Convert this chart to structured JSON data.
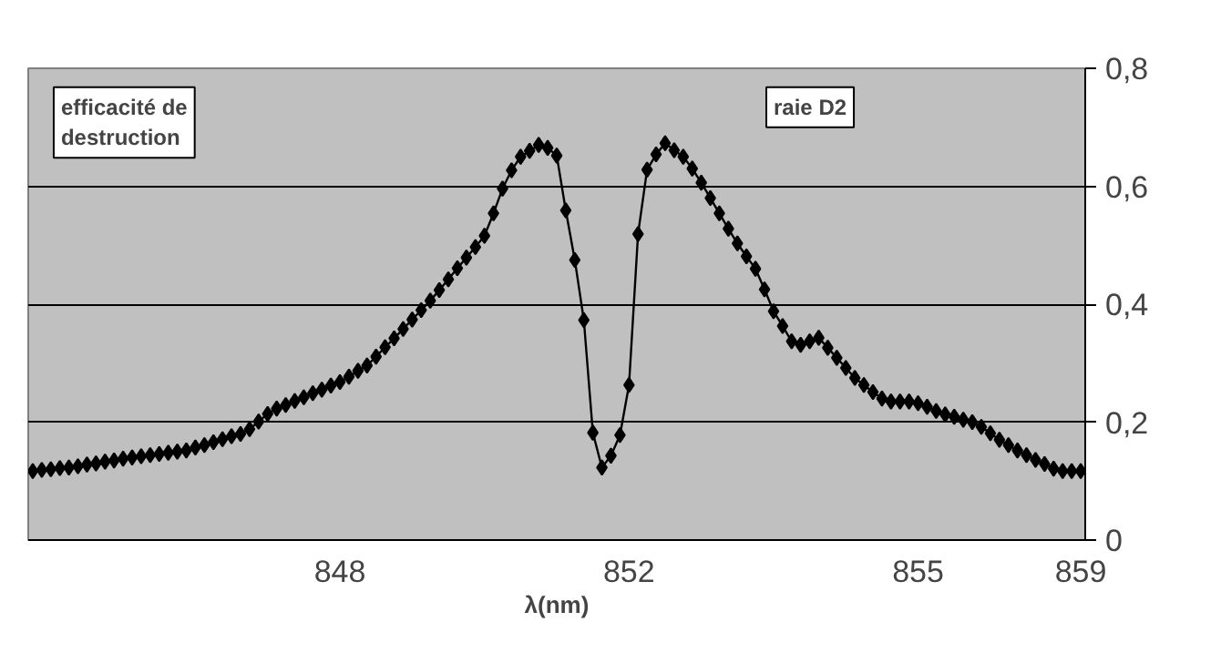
{
  "chart_data": {
    "type": "line",
    "xlabel": "λ(nm)",
    "categories": [
      null,
      null,
      null,
      null,
      null,
      null,
      null,
      null,
      null,
      null,
      null,
      null,
      null,
      null,
      null,
      null,
      null,
      null,
      null,
      null,
      null,
      null,
      null,
      null,
      null,
      null,
      null,
      null,
      null,
      null,
      null,
      null,
      null,
      null,
      "848",
      null,
      null,
      null,
      null,
      null,
      null,
      null,
      null,
      null,
      null,
      null,
      null,
      null,
      null,
      null,
      null,
      null,
      null,
      null,
      null,
      null,
      null,
      null,
      null,
      null,
      null,
      null,
      null,
      null,
      null,
      null,
      "852",
      null,
      null,
      null,
      null,
      null,
      null,
      null,
      null,
      null,
      null,
      null,
      null,
      null,
      null,
      null,
      null,
      null,
      null,
      null,
      null,
      null,
      null,
      null,
      null,
      null,
      null,
      null,
      null,
      null,
      null,
      null,
      "855",
      null,
      null,
      null,
      null,
      null,
      null,
      null,
      null,
      null,
      null,
      null,
      null,
      null,
      null,
      null,
      null,
      null,
      "859"
    ],
    "series": [
      {
        "color": "#000000",
        "values": [
          0.117,
          0.119,
          0.12,
          0.122,
          0.123,
          0.125,
          0.128,
          0.13,
          0.133,
          0.135,
          0.138,
          0.14,
          0.142,
          0.144,
          0.146,
          0.148,
          0.15,
          0.152,
          0.157,
          0.161,
          0.166,
          0.171,
          0.176,
          0.18,
          0.188,
          0.201,
          0.214,
          0.223,
          0.229,
          0.236,
          0.242,
          0.249,
          0.255,
          0.262,
          0.268,
          0.277,
          0.287,
          0.296,
          0.311,
          0.327,
          0.342,
          0.358,
          0.374,
          0.39,
          0.406,
          0.424,
          0.442,
          0.461,
          0.479,
          0.497,
          0.516,
          0.554,
          0.596,
          0.627,
          0.65,
          0.66,
          0.67,
          0.665,
          0.652,
          0.559,
          0.475,
          0.373,
          0.182,
          0.123,
          0.143,
          0.178,
          0.263,
          0.519,
          0.628,
          0.654,
          0.673,
          0.661,
          0.65,
          0.63,
          0.606,
          0.58,
          0.554,
          0.528,
          0.503,
          0.481,
          0.46,
          0.425,
          0.388,
          0.363,
          0.337,
          0.331,
          0.337,
          0.343,
          0.326,
          0.309,
          0.292,
          0.275,
          0.263,
          0.251,
          0.24,
          0.235,
          0.235,
          0.235,
          0.232,
          0.226,
          0.219,
          0.213,
          0.209,
          0.204,
          0.2,
          0.192,
          0.181,
          0.17,
          0.161,
          0.152,
          0.144,
          0.136,
          0.129,
          0.121,
          0.117,
          0.117,
          0.117
        ]
      }
    ],
    "ylim": [
      0,
      0.8
    ],
    "yticks": [
      0,
      {
        "value": 0.2,
        "label": "0,2"
      },
      {
        "value": 0.4,
        "label": "0,4"
      },
      {
        "value": 0.6,
        "label": "0,6"
      },
      {
        "value": 0.8,
        "label": "0,8"
      }
    ],
    "grid": "y",
    "marker": "diamond",
    "line_style": "solid",
    "annotations": [
      "efficacité de\ndestruction",
      "raie D2"
    ]
  }
}
